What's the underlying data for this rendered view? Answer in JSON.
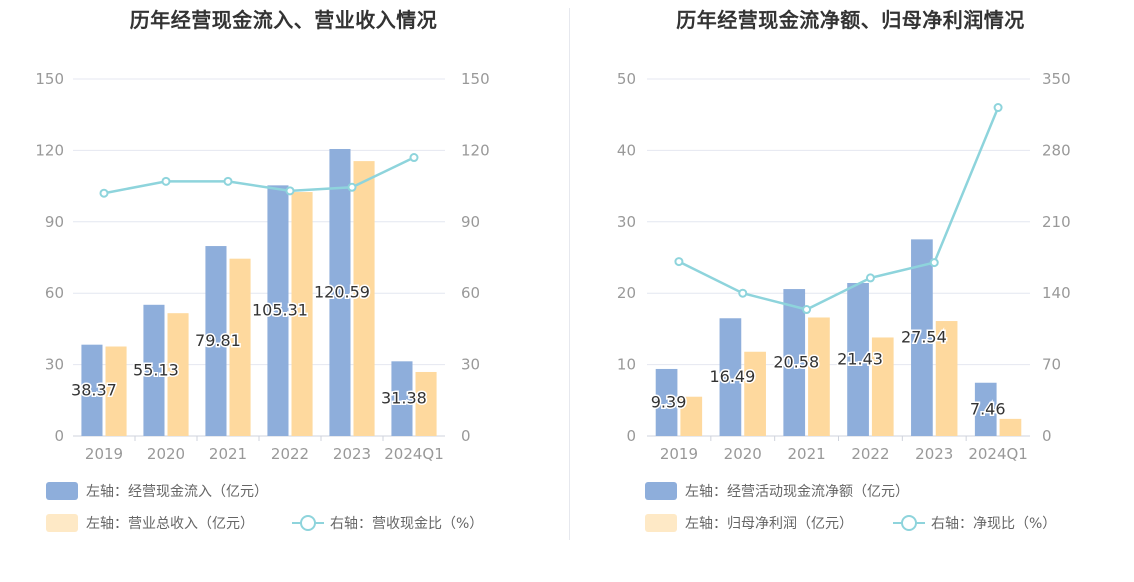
{
  "colors": {
    "cash": "#8eaedb",
    "rev": "#fed99e",
    "line": "#8ed4dc",
    "grid": "#e4e7f0",
    "axis": "#999999"
  },
  "chart_data": [
    {
      "type": "bar",
      "title": "历年经营现金流入、营业收入情况",
      "categories": [
        "2019",
        "2020",
        "2021",
        "2022",
        "2023",
        "2024Q1"
      ],
      "left_axis": {
        "ylim": [
          0,
          150
        ],
        "ticks": [
          "0",
          "30",
          "60",
          "90",
          "120",
          "150"
        ]
      },
      "right_axis": {
        "ylim": [
          0,
          150
        ],
        "ticks": [
          "0",
          "30",
          "60",
          "90",
          "120",
          "150"
        ]
      },
      "series": [
        {
          "name": "左轴：经营现金流入（亿元）",
          "axis": "left",
          "kind": "bar",
          "values": [
            38.37,
            55.13,
            79.81,
            105.31,
            120.59,
            31.38
          ],
          "labels": [
            "38.37",
            "55.13",
            "79.81",
            "105.31",
            "120.59",
            "31.38"
          ]
        },
        {
          "name": "左轴：营业总收入（亿元）",
          "axis": "left",
          "kind": "bar",
          "values": [
            37.6,
            51.6,
            74.5,
            102.5,
            115.5,
            26.9
          ]
        },
        {
          "name": "右轴：营收现金比（%）",
          "axis": "right",
          "kind": "line",
          "values": [
            102,
            107,
            107,
            103,
            104.5,
            117
          ]
        }
      ]
    },
    {
      "type": "bar",
      "title": "历年经营现金流净额、归母净利润情况",
      "categories": [
        "2019",
        "2020",
        "2021",
        "2022",
        "2023",
        "2024Q1"
      ],
      "left_axis": {
        "ylim": [
          0,
          50
        ],
        "ticks": [
          "0",
          "10",
          "20",
          "30",
          "40",
          "50"
        ]
      },
      "right_axis": {
        "ylim": [
          0,
          350
        ],
        "ticks": [
          "0",
          "70",
          "140",
          "210",
          "280",
          "350"
        ]
      },
      "series": [
        {
          "name": "左轴：经营活动现金流净额（亿元）",
          "axis": "left",
          "kind": "bar",
          "values": [
            9.39,
            16.49,
            20.58,
            21.43,
            27.54,
            7.46
          ],
          "labels": [
            "9.39",
            "16.49",
            "20.58",
            "21.43",
            "27.54",
            "7.46"
          ]
        },
        {
          "name": "左轴：归母净利润（亿元）",
          "axis": "left",
          "kind": "bar",
          "values": [
            5.5,
            11.8,
            16.6,
            13.8,
            16.1,
            2.4
          ]
        },
        {
          "name": "右轴：净现比（%）",
          "axis": "right",
          "kind": "line",
          "values": [
            171,
            140,
            124,
            155,
            170,
            322
          ]
        }
      ]
    }
  ]
}
